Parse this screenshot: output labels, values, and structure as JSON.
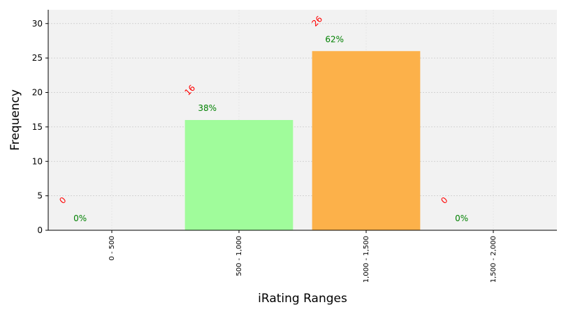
{
  "chart_data": {
    "type": "bar",
    "categories": [
      "0 - 500",
      "500 - 1,000",
      "1,000 - 1,500",
      "1,500 - 2,000"
    ],
    "values": [
      0,
      16,
      26,
      0
    ],
    "count_labels": [
      "0",
      "16",
      "26",
      "0"
    ],
    "percent_labels": [
      "0%",
      "38%",
      "62%",
      "0%"
    ],
    "bar_colors": [
      "#ff9999",
      "#a0fc9b",
      "#fcb14a",
      "#99ccff"
    ],
    "count_label_color": "#ff0000",
    "percent_label_color": "#008000",
    "plot_background": "#f2f2f2",
    "xlabel": "iRating Ranges",
    "ylabel": "Frequency",
    "ylim": [
      0,
      32
    ],
    "yticks": [
      0,
      5,
      10,
      15,
      20,
      25,
      30
    ],
    "grid": true
  }
}
